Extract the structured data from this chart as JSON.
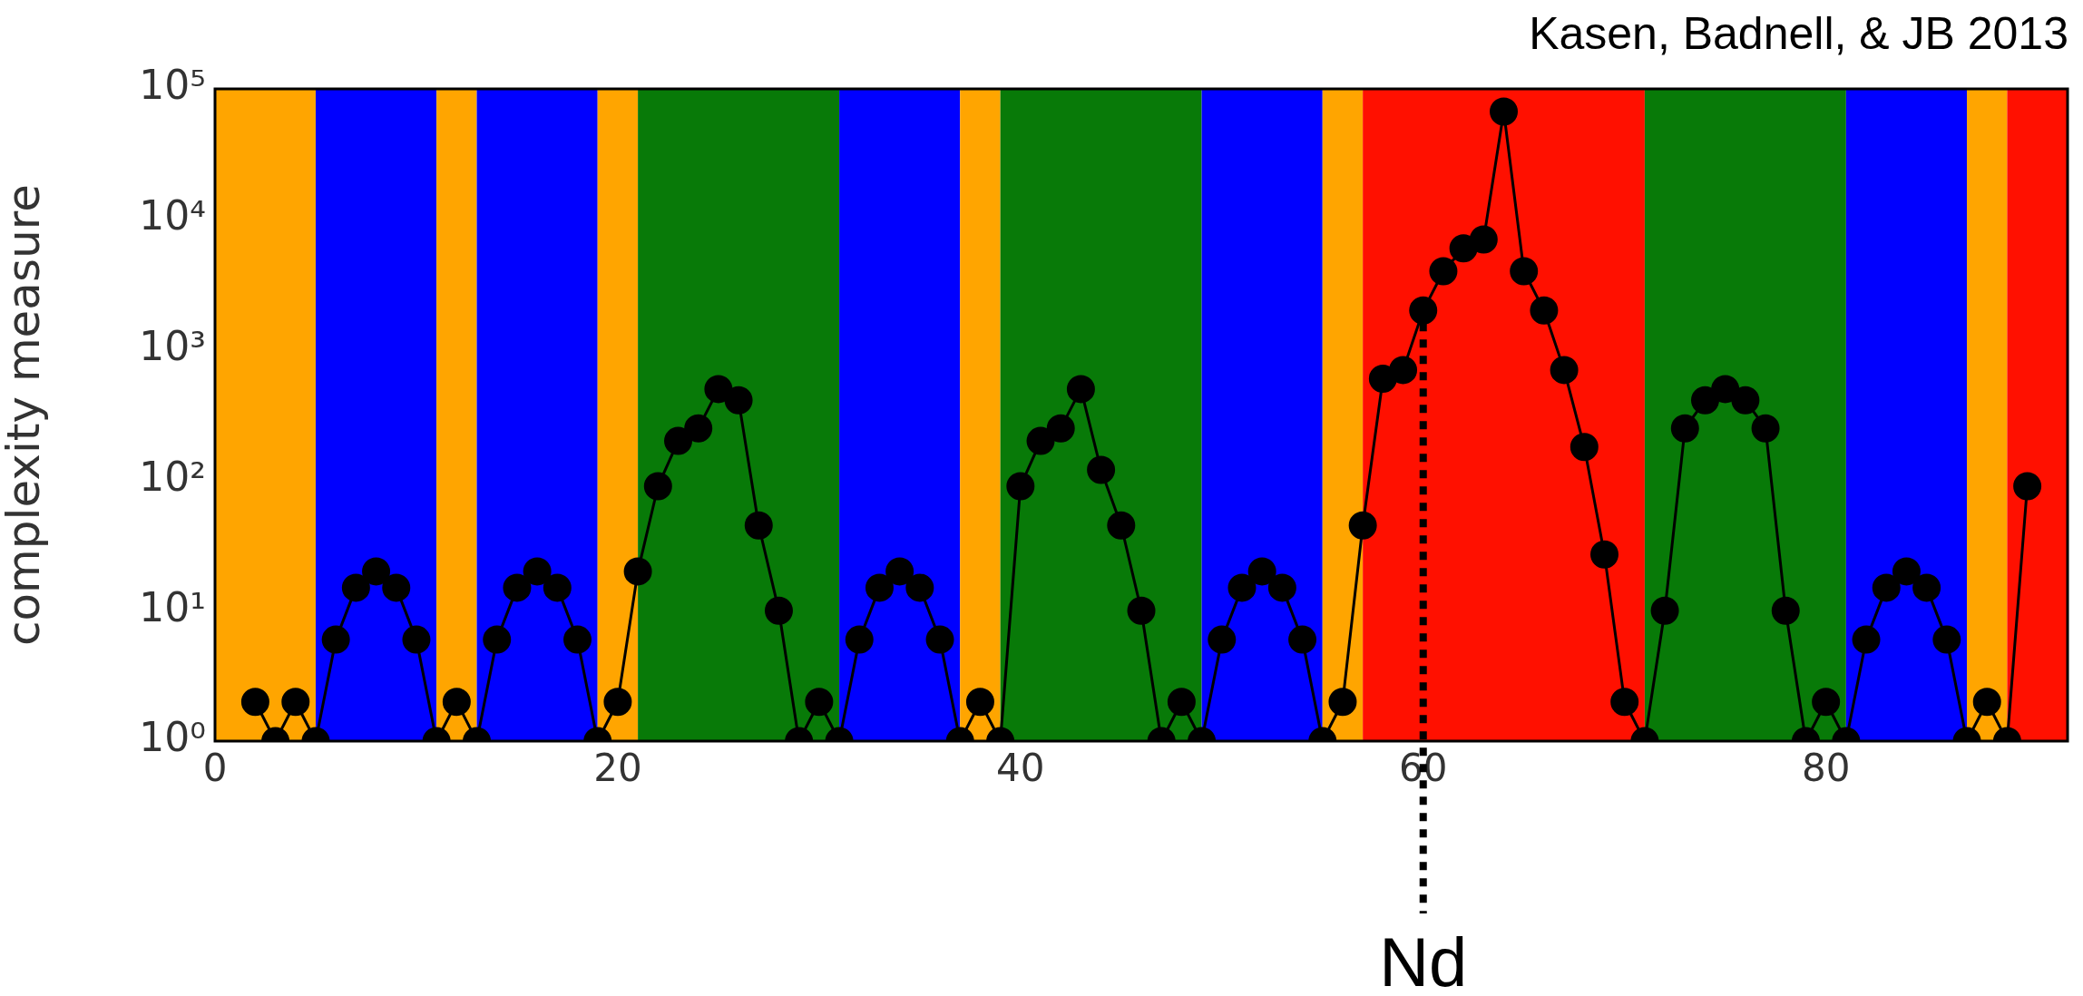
{
  "chart_data": {
    "type": "line",
    "ylabel": "complexity measure",
    "log": "y",
    "grid": false,
    "legend": false,
    "marker": "circle",
    "line_style": "solid",
    "xlim": [
      0,
      92
    ],
    "xticks": [
      0,
      20,
      40,
      60,
      80
    ],
    "ylim": [
      1,
      100000
    ],
    "yticks": [
      {
        "value": 1,
        "label": "10⁰"
      },
      {
        "value": 10,
        "label": "10¹"
      },
      {
        "value": 100,
        "label": "10²"
      },
      {
        "value": 1000,
        "label": "10³"
      },
      {
        "value": 10000,
        "label": "10⁴"
      },
      {
        "value": 100000,
        "label": "10⁵"
      }
    ],
    "x": [
      2,
      3,
      4,
      5,
      6,
      7,
      8,
      9,
      10,
      11,
      12,
      13,
      14,
      15,
      16,
      17,
      18,
      19,
      20,
      21,
      22,
      23,
      24,
      25,
      26,
      27,
      28,
      29,
      30,
      31,
      32,
      33,
      34,
      35,
      36,
      37,
      38,
      39,
      40,
      41,
      42,
      43,
      44,
      45,
      46,
      47,
      48,
      49,
      50,
      51,
      52,
      53,
      54,
      55,
      56,
      57,
      58,
      59,
      60,
      61,
      62,
      63,
      64,
      65,
      66,
      67,
      68,
      69,
      70,
      71,
      72,
      73,
      74,
      75,
      76,
      77,
      78,
      79,
      80,
      81,
      82,
      83,
      84,
      85,
      86,
      87,
      88,
      89,
      90
    ],
    "series": [
      {
        "color": "#000000",
        "values": [
          2,
          1,
          2,
          1,
          6,
          15,
          20,
          15,
          6,
          1,
          2,
          1,
          6,
          15,
          20,
          15,
          6,
          1,
          2,
          20,
          90,
          200,
          250,
          500,
          410,
          45,
          10,
          1,
          2,
          1,
          6,
          15,
          20,
          15,
          6,
          1,
          2,
          1,
          90,
          200,
          250,
          500,
          120,
          45,
          10,
          1,
          2,
          1,
          6,
          15,
          20,
          15,
          6,
          1,
          2,
          45,
          600,
          700,
          2000,
          4000,
          6000,
          7000,
          67000,
          4000,
          2000,
          700,
          180,
          27,
          2,
          1,
          10,
          250,
          410,
          500,
          410,
          250,
          10,
          1,
          2,
          1,
          6,
          15,
          20,
          15,
          6,
          1,
          2,
          1,
          90
        ]
      }
    ],
    "bands": [
      {
        "axis": "x",
        "from": 0,
        "to": 5,
        "color": "#ffa500"
      },
      {
        "axis": "x",
        "from": 5,
        "to": 11,
        "color": "#0000ff"
      },
      {
        "axis": "x",
        "from": 11,
        "to": 13,
        "color": "#ffa500"
      },
      {
        "axis": "x",
        "from": 13,
        "to": 19,
        "color": "#0000ff"
      },
      {
        "axis": "x",
        "from": 19,
        "to": 21,
        "color": "#ffa500"
      },
      {
        "axis": "x",
        "from": 21,
        "to": 31,
        "color": "#087a08"
      },
      {
        "axis": "x",
        "from": 31,
        "to": 37,
        "color": "#0000ff"
      },
      {
        "axis": "x",
        "from": 37,
        "to": 39,
        "color": "#ffa500"
      },
      {
        "axis": "x",
        "from": 39,
        "to": 49,
        "color": "#087a08"
      },
      {
        "axis": "x",
        "from": 49,
        "to": 55,
        "color": "#0000ff"
      },
      {
        "axis": "x",
        "from": 55,
        "to": 57,
        "color": "#ffa500"
      },
      {
        "axis": "x",
        "from": 57,
        "to": 71,
        "color": "#ff1000"
      },
      {
        "axis": "x",
        "from": 71,
        "to": 81,
        "color": "#087a08"
      },
      {
        "axis": "x",
        "from": 81,
        "to": 87,
        "color": "#0000ff"
      },
      {
        "axis": "x",
        "from": 87,
        "to": 89,
        "color": "#ffa500"
      },
      {
        "axis": "x",
        "from": 89,
        "to": 92,
        "color": "#ff1000"
      }
    ],
    "ref_lines": [
      {
        "axis": "x",
        "value": 60,
        "label": "Nd",
        "color": "#000000",
        "line_style": "dotted"
      }
    ],
    "annotations": [
      "Kasen, Badnell, & JB 2013"
    ]
  }
}
